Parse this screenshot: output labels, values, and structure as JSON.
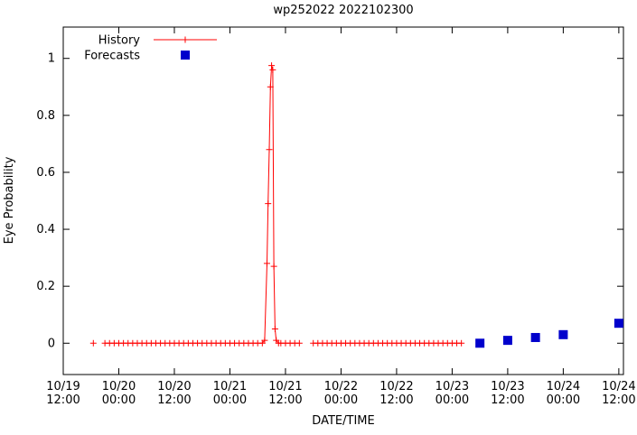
{
  "chart_data": {
    "type": "line",
    "title": "wp252022 2022102300",
    "xlabel": "DATE/TIME",
    "ylabel": "Eye Probability",
    "x_unit": "hours since 10/19 12:00",
    "xlim": [
      0,
      121
    ],
    "ylim": [
      -0.11,
      1.11
    ],
    "grid": false,
    "legend_position": "top-left-inside",
    "background": "#ffffff",
    "colors": {
      "history": "#ff0000",
      "forecast": "#0000cc",
      "axis": "#000000"
    },
    "x_ticks": [
      {
        "h": 0,
        "date": "10/19",
        "time": "12:00"
      },
      {
        "h": 12,
        "date": "10/20",
        "time": "00:00"
      },
      {
        "h": 24,
        "date": "10/20",
        "time": "12:00"
      },
      {
        "h": 36,
        "date": "10/21",
        "time": "00:00"
      },
      {
        "h": 48,
        "date": "10/21",
        "time": "12:00"
      },
      {
        "h": 60,
        "date": "10/22",
        "time": "00:00"
      },
      {
        "h": 72,
        "date": "10/22",
        "time": "12:00"
      },
      {
        "h": 84,
        "date": "10/23",
        "time": "00:00"
      },
      {
        "h": 96,
        "date": "10/23",
        "time": "12:00"
      },
      {
        "h": 108,
        "date": "10/24",
        "time": "00:00"
      },
      {
        "h": 120,
        "date": "10/24",
        "time": "12:00"
      }
    ],
    "y_ticks": [
      {
        "v": 0,
        "label": "0"
      },
      {
        "v": 0.2,
        "label": "0.2"
      },
      {
        "v": 0.4,
        "label": "0.4"
      },
      {
        "v": 0.6,
        "label": "0.6"
      },
      {
        "v": 0.8,
        "label": "0.8"
      },
      {
        "v": 1,
        "label": "1"
      }
    ],
    "series": [
      {
        "name": "History",
        "style": "linespoints",
        "marker": "plus",
        "color": "#ff0000",
        "gap_break_hours": 1.6,
        "points": [
          [
            6.5,
            0
          ],
          [
            9,
            0
          ],
          [
            10,
            0
          ],
          [
            11,
            0
          ],
          [
            12,
            0
          ],
          [
            13,
            0
          ],
          [
            14,
            0
          ],
          [
            15,
            0
          ],
          [
            16,
            0
          ],
          [
            17,
            0
          ],
          [
            18,
            0
          ],
          [
            19,
            0
          ],
          [
            20,
            0
          ],
          [
            21,
            0
          ],
          [
            22,
            0
          ],
          [
            23,
            0
          ],
          [
            24,
            0
          ],
          [
            25,
            0
          ],
          [
            26,
            0
          ],
          [
            27,
            0
          ],
          [
            28,
            0
          ],
          [
            29,
            0
          ],
          [
            30,
            0
          ],
          [
            31,
            0
          ],
          [
            32,
            0
          ],
          [
            33,
            0
          ],
          [
            34,
            0
          ],
          [
            35,
            0
          ],
          [
            36,
            0
          ],
          [
            37,
            0
          ],
          [
            38,
            0
          ],
          [
            39,
            0
          ],
          [
            40,
            0
          ],
          [
            41,
            0
          ],
          [
            42,
            0
          ],
          [
            43,
            0
          ],
          [
            43.5,
            0.01
          ],
          [
            44,
            0.28
          ],
          [
            44.25,
            0.49
          ],
          [
            44.5,
            0.68
          ],
          [
            44.75,
            0.9
          ],
          [
            45,
            0.975
          ],
          [
            45.25,
            0.96
          ],
          [
            45.5,
            0.27
          ],
          [
            45.75,
            0.05
          ],
          [
            46,
            0.01
          ],
          [
            46.5,
            0
          ],
          [
            47,
            0
          ],
          [
            48,
            0
          ],
          [
            49,
            0
          ],
          [
            50,
            0
          ],
          [
            51,
            0
          ],
          [
            54,
            0
          ],
          [
            55,
            0
          ],
          [
            56,
            0
          ],
          [
            57,
            0
          ],
          [
            58,
            0
          ],
          [
            59,
            0
          ],
          [
            60,
            0
          ],
          [
            61,
            0
          ],
          [
            62,
            0
          ],
          [
            63,
            0
          ],
          [
            64,
            0
          ],
          [
            65,
            0
          ],
          [
            66,
            0
          ],
          [
            67,
            0
          ],
          [
            68,
            0
          ],
          [
            69,
            0
          ],
          [
            70,
            0
          ],
          [
            71,
            0
          ],
          [
            72,
            0
          ],
          [
            73,
            0
          ],
          [
            74,
            0
          ],
          [
            75,
            0
          ],
          [
            76,
            0
          ],
          [
            77,
            0
          ],
          [
            78,
            0
          ],
          [
            79,
            0
          ],
          [
            80,
            0
          ],
          [
            81,
            0
          ],
          [
            82,
            0
          ],
          [
            83,
            0
          ],
          [
            84,
            0
          ],
          [
            85,
            0
          ],
          [
            86,
            0
          ]
        ]
      },
      {
        "name": "Forecasts",
        "style": "points",
        "marker": "square",
        "color": "#0000cc",
        "times": [
          "10/23 06:00",
          "10/23 12:00",
          "10/23 18:00",
          "10/24 00:00",
          "10/24 12:00"
        ],
        "points": [
          [
            90,
            0
          ],
          [
            96,
            0.01
          ],
          [
            102,
            0.02
          ],
          [
            108,
            0.03
          ],
          [
            120,
            0.07
          ]
        ]
      }
    ],
    "legend": [
      {
        "label": "History",
        "series": "History"
      },
      {
        "label": "Forecasts",
        "series": "Forecasts"
      }
    ]
  }
}
